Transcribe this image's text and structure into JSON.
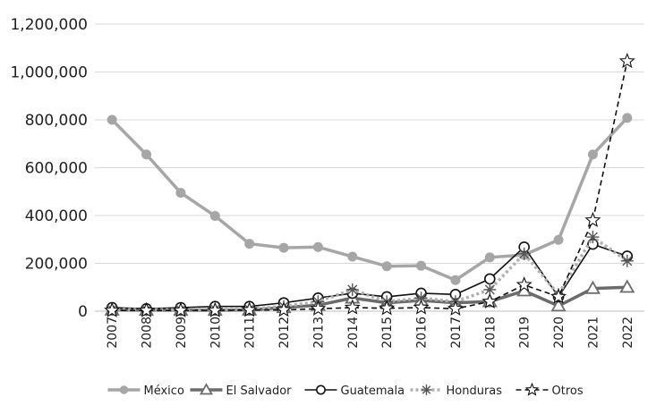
{
  "chart_data": {
    "type": "line",
    "title": "",
    "xlabel": "",
    "ylabel": "",
    "ylim": [
      0,
      1200000
    ],
    "yticks": [
      0,
      200000,
      400000,
      600000,
      800000,
      1000000,
      1200000
    ],
    "ytick_labels": [
      "0",
      "200,000",
      "400,000",
      "600,000",
      "800,000",
      "1,000,000",
      "1,200,000"
    ],
    "categories": [
      "2007",
      "2008",
      "2009",
      "2010",
      "2011",
      "2012",
      "2013",
      "2014",
      "2015",
      "2016",
      "2017",
      "2018",
      "2019",
      "2020",
      "2021",
      "2022"
    ],
    "grid": "horizontal",
    "legend_position": "bottom",
    "series": [
      {
        "name": "México",
        "color": "#a6a6a6",
        "style": "solid-thick",
        "marker": "filled-circle",
        "values": [
          800000,
          655000,
          495000,
          398000,
          282000,
          265000,
          268000,
          228000,
          188000,
          190000,
          130000,
          225000,
          235000,
          298000,
          655000,
          808000
        ]
      },
      {
        "name": "El Salvador",
        "color": "#6b6b6b",
        "style": "solid-thick",
        "marker": "open-triangle",
        "values": [
          5000,
          4000,
          4000,
          4000,
          5000,
          15000,
          25000,
          55000,
          35000,
          45000,
          35000,
          40000,
          85000,
          22000,
          95000,
          100000
        ]
      },
      {
        "name": "Guatemala",
        "color": "#111111",
        "style": "solid",
        "marker": "open-circle",
        "values": [
          15000,
          10000,
          15000,
          20000,
          20000,
          35000,
          55000,
          75000,
          60000,
          75000,
          70000,
          135000,
          268000,
          60000,
          280000,
          230000
        ]
      },
      {
        "name": "Honduras",
        "color": "#b0b0b0",
        "style": "dotted",
        "marker": "asterisk",
        "values": [
          8000,
          6000,
          6000,
          8000,
          8000,
          20000,
          40000,
          90000,
          40000,
          55000,
          40000,
          90000,
          240000,
          70000,
          310000,
          210000
        ]
      },
      {
        "name": "Otros",
        "color": "#111111",
        "style": "dashed",
        "marker": "open-star",
        "values": [
          3000,
          3000,
          3000,
          3000,
          5000,
          5000,
          10000,
          15000,
          12000,
          15000,
          10000,
          40000,
          110000,
          60000,
          380000,
          1045000
        ]
      }
    ]
  }
}
